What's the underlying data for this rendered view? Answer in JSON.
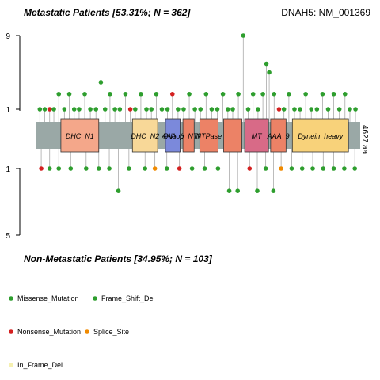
{
  "chart_data": {
    "type": "lollipop",
    "title_top": "Metastatic Patients [53.31%; N = 362]",
    "title_bottom": "Non-Metastatic Patients [34.95%; N = 103]",
    "gene_label": "DNAH5: NM_001369",
    "protein_length_label": "4627 aa",
    "protein_length": 4627,
    "top_axis": {
      "ticks": [
        "9",
        "1"
      ],
      "ylim": [
        0,
        9
      ]
    },
    "bottom_axis": {
      "ticks": [
        "1",
        "5"
      ],
      "ylim": [
        0,
        5
      ]
    },
    "domains": [
      {
        "name": "DHC_N1",
        "start": 360,
        "end": 900,
        "color": "#F4A78A"
      },
      {
        "name": "DHC_N2",
        "start": 1380,
        "end": 1740,
        "color": "#F8D898"
      },
      {
        "name": "AAA_6",
        "start": 1850,
        "end": 2060,
        "color": "#7B89DB"
      },
      {
        "name": "P-loop_NTPase",
        "start": 2100,
        "end": 2260,
        "color": "#EC8266"
      },
      {
        "name": "NTPase",
        "start": 2340,
        "end": 2600,
        "color": "#EC8266"
      },
      {
        "name": "",
        "start": 2680,
        "end": 2940,
        "color": "#EC8266"
      },
      {
        "name": "MT",
        "start": 2980,
        "end": 3320,
        "color": "#D86A87"
      },
      {
        "name": "AAA_9",
        "start": 3350,
        "end": 3570,
        "color": "#EC8266"
      },
      {
        "name": "Dynein_heavy",
        "start": 3660,
        "end": 4460,
        "color": "#F8D27A"
      }
    ],
    "mutation_types": [
      {
        "name": "Missense_Mutation",
        "color": "#2E9E2E"
      },
      {
        "name": "Frame_Shift_Del",
        "color": "#2E9E2E"
      },
      {
        "name": "Nonsense_Mutation",
        "color": "#D42020"
      },
      {
        "name": "Splice_Site",
        "color": "#F08A00"
      },
      {
        "name": "In_Frame_Del",
        "color": "#F5F0B0"
      }
    ],
    "top_mutations": [
      {
        "pos": 60,
        "count": 1,
        "type": "Missense_Mutation"
      },
      {
        "pos": 130,
        "count": 1,
        "type": "Missense_Mutation"
      },
      {
        "pos": 200,
        "count": 1,
        "type": "Nonsense_Mutation"
      },
      {
        "pos": 260,
        "count": 1,
        "type": "Missense_Mutation"
      },
      {
        "pos": 330,
        "count": 2,
        "type": "Missense_Mutation"
      },
      {
        "pos": 410,
        "count": 1,
        "type": "Missense_Mutation"
      },
      {
        "pos": 480,
        "count": 2,
        "type": "Missense_Mutation"
      },
      {
        "pos": 550,
        "count": 1,
        "type": "Missense_Mutation"
      },
      {
        "pos": 620,
        "count": 1,
        "type": "Missense_Mutation"
      },
      {
        "pos": 700,
        "count": 2,
        "type": "Missense_Mutation"
      },
      {
        "pos": 780,
        "count": 1,
        "type": "Missense_Mutation"
      },
      {
        "pos": 860,
        "count": 1,
        "type": "Missense_Mutation"
      },
      {
        "pos": 930,
        "count": 3,
        "type": "Missense_Mutation"
      },
      {
        "pos": 990,
        "count": 1,
        "type": "Missense_Mutation"
      },
      {
        "pos": 1060,
        "count": 2,
        "type": "Missense_Mutation"
      },
      {
        "pos": 1130,
        "count": 1,
        "type": "Missense_Mutation"
      },
      {
        "pos": 1200,
        "count": 1,
        "type": "Missense_Mutation"
      },
      {
        "pos": 1280,
        "count": 2,
        "type": "Missense_Mutation"
      },
      {
        "pos": 1350,
        "count": 1,
        "type": "Nonsense_Mutation"
      },
      {
        "pos": 1420,
        "count": 1,
        "type": "Missense_Mutation"
      },
      {
        "pos": 1500,
        "count": 2,
        "type": "Missense_Mutation"
      },
      {
        "pos": 1580,
        "count": 1,
        "type": "Missense_Mutation"
      },
      {
        "pos": 1650,
        "count": 1,
        "type": "Missense_Mutation"
      },
      {
        "pos": 1720,
        "count": 2,
        "type": "Missense_Mutation"
      },
      {
        "pos": 1800,
        "count": 1,
        "type": "Missense_Mutation"
      },
      {
        "pos": 1880,
        "count": 1,
        "type": "Missense_Mutation"
      },
      {
        "pos": 1950,
        "count": 2,
        "type": "Nonsense_Mutation"
      },
      {
        "pos": 2030,
        "count": 1,
        "type": "Missense_Mutation"
      },
      {
        "pos": 2110,
        "count": 1,
        "type": "Missense_Mutation"
      },
      {
        "pos": 2190,
        "count": 2,
        "type": "Missense_Mutation"
      },
      {
        "pos": 2270,
        "count": 1,
        "type": "Missense_Mutation"
      },
      {
        "pos": 2350,
        "count": 1,
        "type": "Missense_Mutation"
      },
      {
        "pos": 2430,
        "count": 2,
        "type": "Missense_Mutation"
      },
      {
        "pos": 2510,
        "count": 1,
        "type": "Missense_Mutation"
      },
      {
        "pos": 2590,
        "count": 1,
        "type": "Missense_Mutation"
      },
      {
        "pos": 2670,
        "count": 2,
        "type": "Missense_Mutation"
      },
      {
        "pos": 2740,
        "count": 1,
        "type": "Missense_Mutation"
      },
      {
        "pos": 2810,
        "count": 1,
        "type": "Missense_Mutation"
      },
      {
        "pos": 2890,
        "count": 2,
        "type": "Missense_Mutation"
      },
      {
        "pos": 2960,
        "count": 9,
        "type": "Missense_Mutation"
      },
      {
        "pos": 3030,
        "count": 1,
        "type": "Missense_Mutation"
      },
      {
        "pos": 3100,
        "count": 2,
        "type": "Missense_Mutation"
      },
      {
        "pos": 3170,
        "count": 1,
        "type": "Missense_Mutation"
      },
      {
        "pos": 3240,
        "count": 2,
        "type": "Missense_Mutation"
      },
      {
        "pos": 3290,
        "count": 5,
        "type": "Missense_Mutation"
      },
      {
        "pos": 3330,
        "count": 4,
        "type": "Missense_Mutation"
      },
      {
        "pos": 3400,
        "count": 2,
        "type": "Missense_Mutation"
      },
      {
        "pos": 3470,
        "count": 1,
        "type": "Nonsense_Mutation"
      },
      {
        "pos": 3540,
        "count": 1,
        "type": "Missense_Mutation"
      },
      {
        "pos": 3610,
        "count": 2,
        "type": "Missense_Mutation"
      },
      {
        "pos": 3690,
        "count": 1,
        "type": "Missense_Mutation"
      },
      {
        "pos": 3770,
        "count": 1,
        "type": "Missense_Mutation"
      },
      {
        "pos": 3850,
        "count": 2,
        "type": "Missense_Mutation"
      },
      {
        "pos": 3930,
        "count": 1,
        "type": "Missense_Mutation"
      },
      {
        "pos": 4010,
        "count": 1,
        "type": "Missense_Mutation"
      },
      {
        "pos": 4090,
        "count": 2,
        "type": "Missense_Mutation"
      },
      {
        "pos": 4170,
        "count": 1,
        "type": "Missense_Mutation"
      },
      {
        "pos": 4250,
        "count": 2,
        "type": "Missense_Mutation"
      },
      {
        "pos": 4330,
        "count": 1,
        "type": "Missense_Mutation"
      },
      {
        "pos": 4410,
        "count": 2,
        "type": "Missense_Mutation"
      },
      {
        "pos": 4480,
        "count": 1,
        "type": "Missense_Mutation"
      },
      {
        "pos": 4560,
        "count": 1,
        "type": "Missense_Mutation"
      }
    ],
    "bottom_mutations": [
      {
        "pos": 80,
        "count": 1,
        "type": "Nonsense_Mutation"
      },
      {
        "pos": 200,
        "count": 1,
        "type": "Missense_Mutation"
      },
      {
        "pos": 330,
        "count": 1,
        "type": "Missense_Mutation"
      },
      {
        "pos": 500,
        "count": 1,
        "type": "Missense_Mutation"
      },
      {
        "pos": 720,
        "count": 1,
        "type": "Missense_Mutation"
      },
      {
        "pos": 900,
        "count": 1,
        "type": "Missense_Mutation"
      },
      {
        "pos": 1050,
        "count": 1,
        "type": "Missense_Mutation"
      },
      {
        "pos": 1180,
        "count": 2,
        "type": "Missense_Mutation"
      },
      {
        "pos": 1330,
        "count": 1,
        "type": "Missense_Mutation"
      },
      {
        "pos": 1560,
        "count": 1,
        "type": "Missense_Mutation"
      },
      {
        "pos": 1700,
        "count": 1,
        "type": "Splice_Site"
      },
      {
        "pos": 1870,
        "count": 1,
        "type": "Missense_Mutation"
      },
      {
        "pos": 2050,
        "count": 1,
        "type": "Nonsense_Mutation"
      },
      {
        "pos": 2230,
        "count": 1,
        "type": "Missense_Mutation"
      },
      {
        "pos": 2410,
        "count": 1,
        "type": "Missense_Mutation"
      },
      {
        "pos": 2600,
        "count": 1,
        "type": "Missense_Mutation"
      },
      {
        "pos": 2760,
        "count": 2,
        "type": "Missense_Mutation"
      },
      {
        "pos": 2880,
        "count": 2,
        "type": "Missense_Mutation"
      },
      {
        "pos": 3050,
        "count": 1,
        "type": "Nonsense_Mutation"
      },
      {
        "pos": 3160,
        "count": 2,
        "type": "Missense_Mutation"
      },
      {
        "pos": 3280,
        "count": 1,
        "type": "Missense_Mutation"
      },
      {
        "pos": 3390,
        "count": 2,
        "type": "Missense_Mutation"
      },
      {
        "pos": 3500,
        "count": 1,
        "type": "Splice_Site"
      },
      {
        "pos": 3650,
        "count": 1,
        "type": "Missense_Mutation"
      },
      {
        "pos": 3800,
        "count": 1,
        "type": "Missense_Mutation"
      },
      {
        "pos": 3950,
        "count": 1,
        "type": "Missense_Mutation"
      },
      {
        "pos": 4100,
        "count": 1,
        "type": "Missense_Mutation"
      },
      {
        "pos": 4250,
        "count": 1,
        "type": "Missense_Mutation"
      },
      {
        "pos": 4400,
        "count": 1,
        "type": "Missense_Mutation"
      },
      {
        "pos": 4550,
        "count": 1,
        "type": "Missense_Mutation"
      }
    ]
  }
}
